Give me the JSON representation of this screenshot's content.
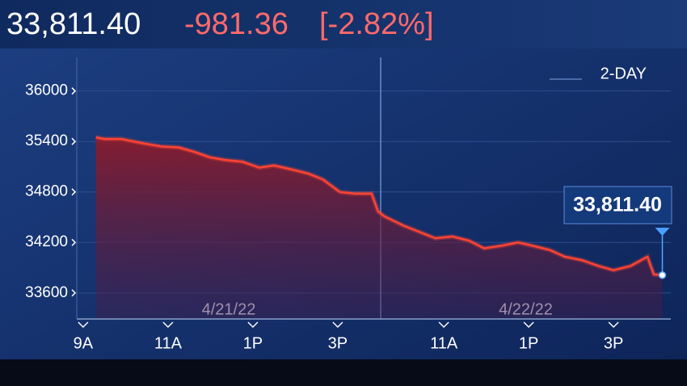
{
  "header": {
    "last": "33,811.40",
    "change": "-981.36",
    "change_pct": "[-2.82%]"
  },
  "chart_data": {
    "type": "area-line",
    "period": "2-DAY",
    "day_labels": [
      "4/21/22",
      "4/22/22"
    ],
    "color": "#ff4433",
    "x": [
      9.3,
      9.5,
      9.9,
      10.45,
      10.85,
      11.25,
      11.6,
      12.0,
      12.35,
      12.75,
      13.15,
      13.5,
      13.9,
      14.3,
      14.65,
      15.05,
      15.4,
      15.8,
      15.95,
      16.1,
      16.55,
      16.95,
      17.3,
      17.7,
      18.1,
      18.45,
      18.85,
      19.25,
      19.6,
      20.0,
      20.35,
      20.75,
      21.15,
      21.5,
      21.9,
      22.3,
      22.45,
      22.65
    ],
    "values": [
      35450,
      35430,
      35430,
      35375,
      35340,
      35330,
      35280,
      35210,
      35180,
      35160,
      35090,
      35115,
      35070,
      35020,
      34950,
      34800,
      34780,
      34780,
      34570,
      34510,
      34400,
      34320,
      34250,
      34270,
      34220,
      34130,
      34160,
      34200,
      34160,
      34110,
      34030,
      33990,
      33920,
      33870,
      33920,
      34030,
      33820,
      33811.4
    ],
    "xlim": [
      8.85,
      22.85
    ],
    "ylim": [
      33300,
      36400
    ],
    "xticks": [
      {
        "value": 9,
        "label": "9A"
      },
      {
        "value": 11,
        "label": "11A"
      },
      {
        "value": 13,
        "label": "1P"
      },
      {
        "value": 15,
        "label": "3P"
      },
      {
        "value": 17.5,
        "label": "11A"
      },
      {
        "value": 19.5,
        "label": "1P"
      },
      {
        "value": 21.5,
        "label": "3P"
      }
    ],
    "yticks": [
      33600,
      34200,
      34800,
      35400,
      36000
    ],
    "grid": true
  }
}
